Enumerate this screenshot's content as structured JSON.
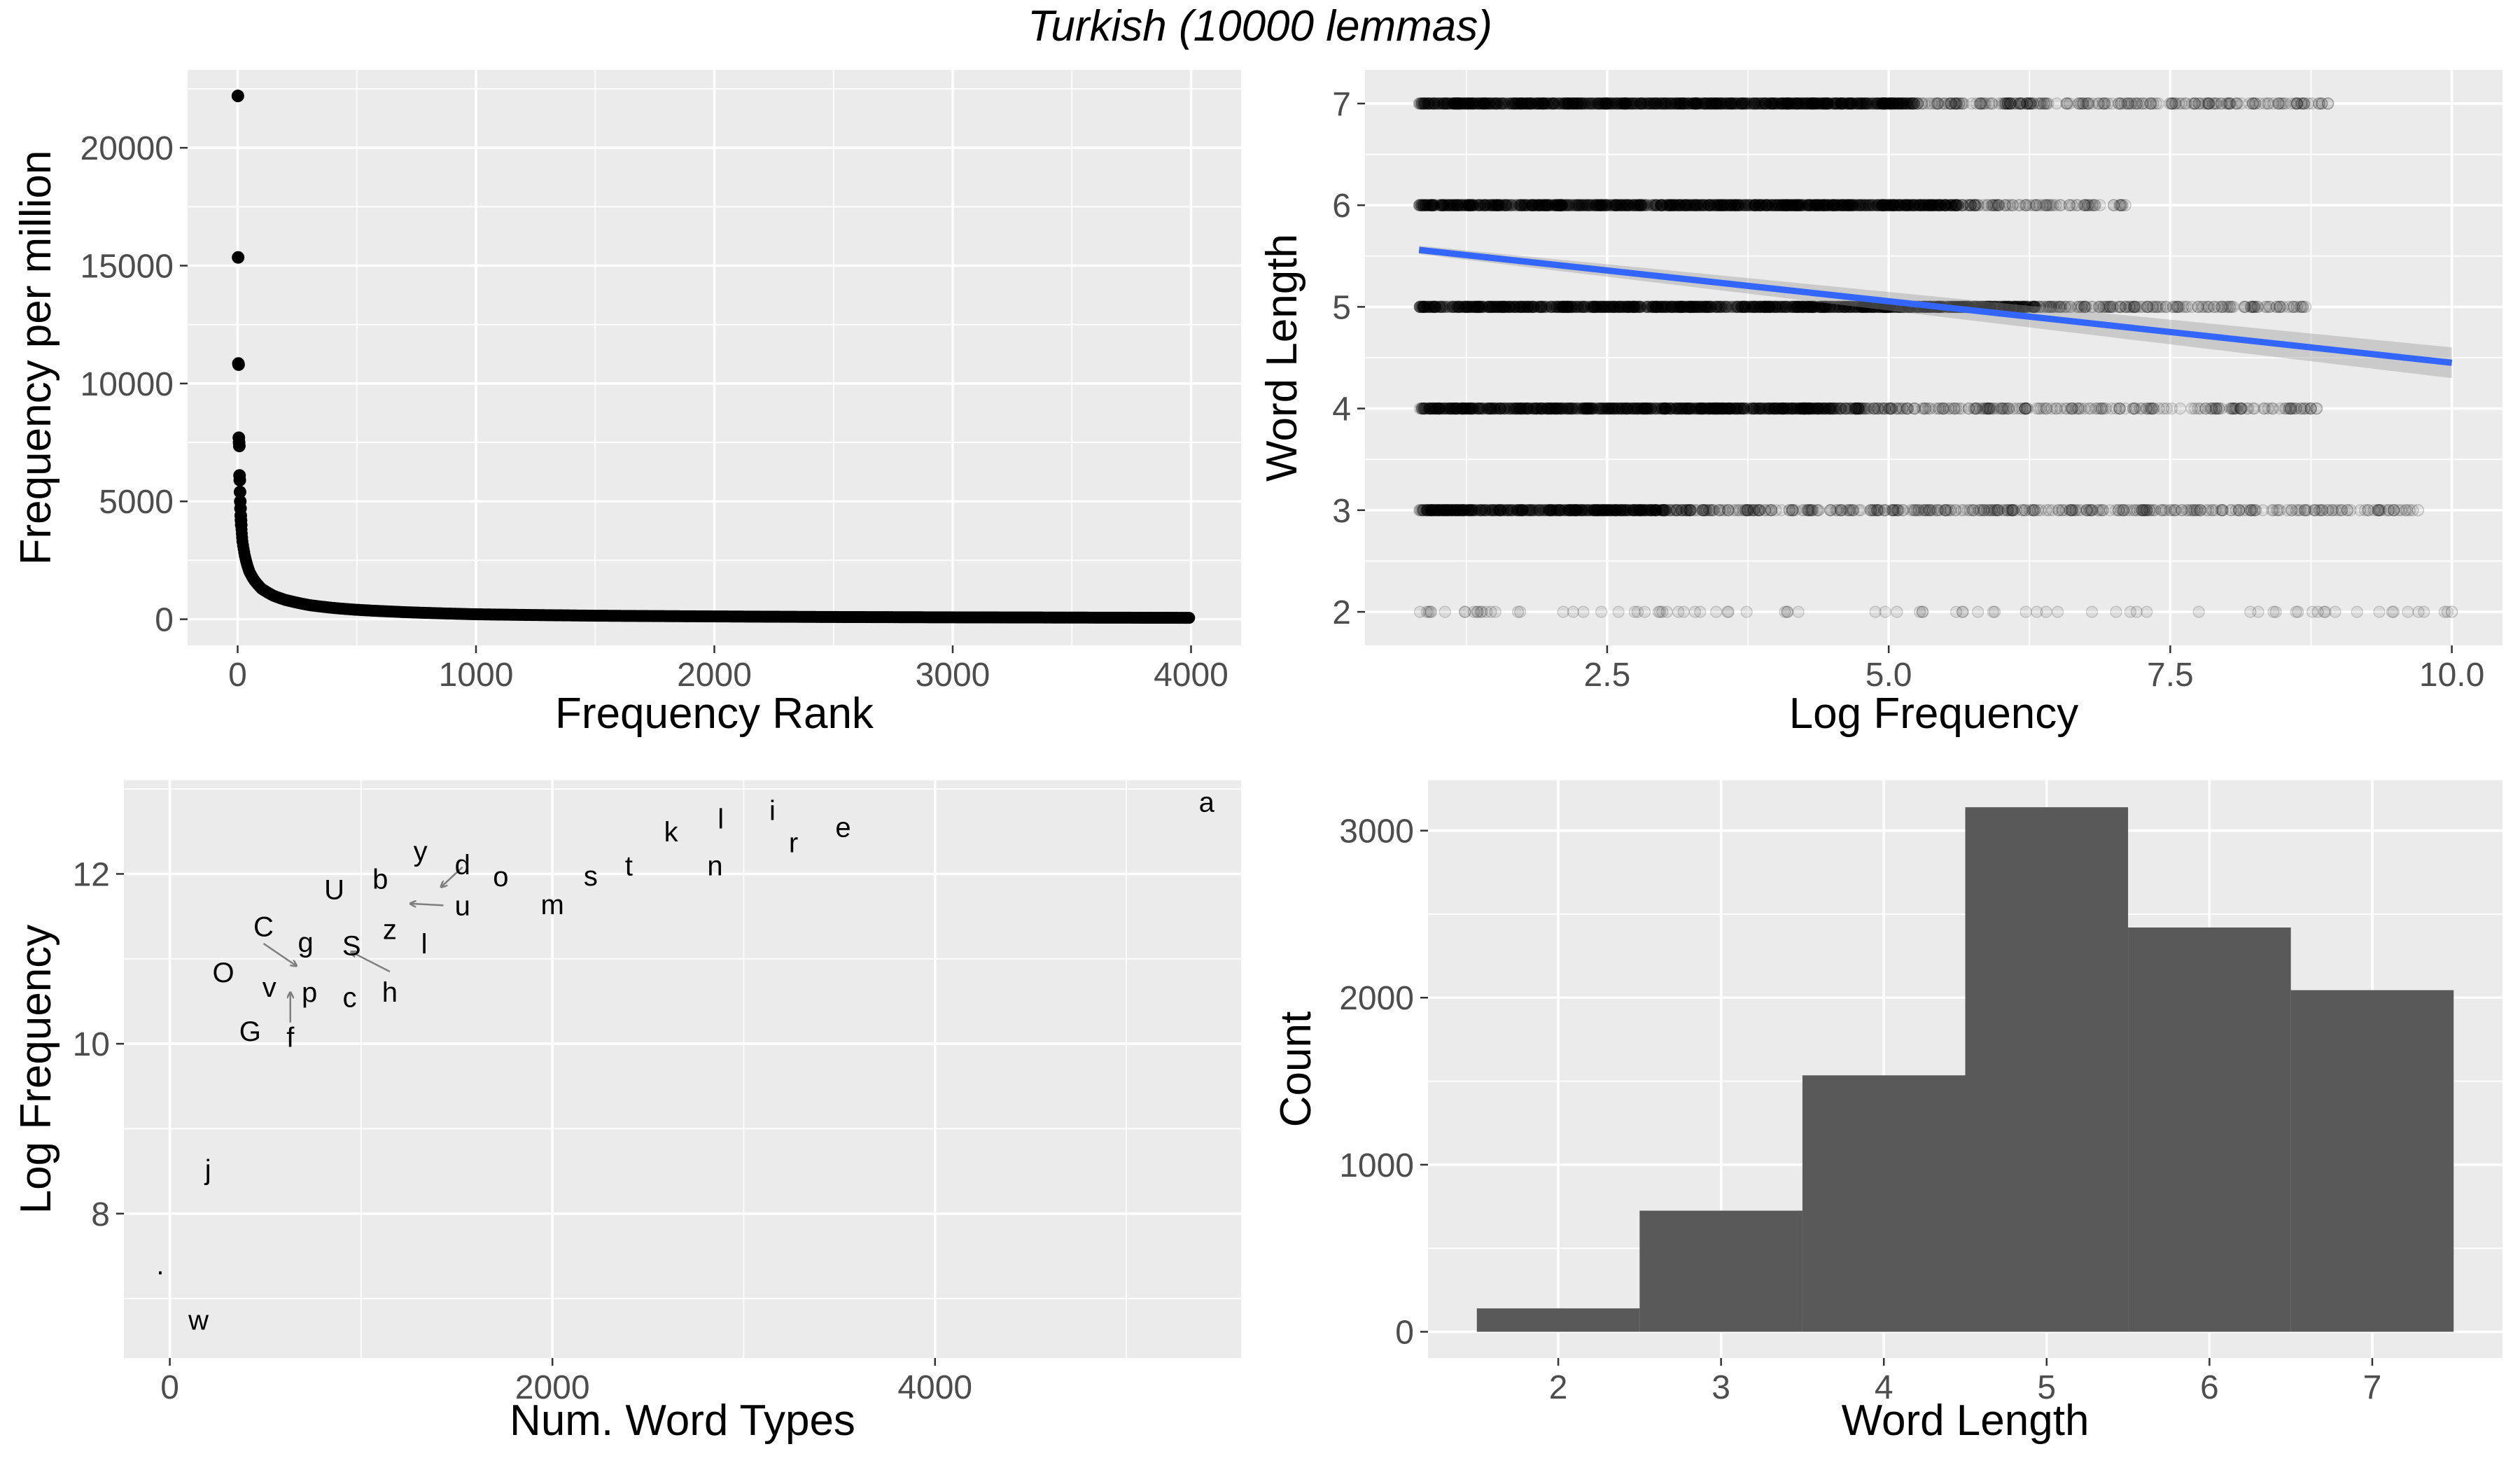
{
  "figure": {
    "title": "Turkish (10000 lemmas)"
  },
  "chart_data": [
    {
      "type": "scatter",
      "xlabel": "Frequency Rank",
      "ylabel": "Frequency per million",
      "xlim": [
        -210,
        4210
      ],
      "ylim": [
        -1110,
        23300
      ],
      "x_ticks": [
        0,
        1000,
        2000,
        3000,
        4000
      ],
      "x_tick_labels": [
        "0",
        "1000",
        "2000",
        "3000",
        "4000"
      ],
      "y_ticks": [
        0,
        5000,
        10000,
        15000,
        20000
      ],
      "y_tick_labels": [
        "0",
        "5000",
        "10000",
        "15000",
        "20000"
      ],
      "grid": true,
      "head_values": [
        22200,
        15350,
        10850,
        10800,
        7700,
        7500,
        7350,
        6100,
        5900,
        5400,
        5000,
        4700,
        4400,
        4200,
        4000
      ],
      "curve": [
        [
          15,
          4000
        ],
        [
          20,
          3300
        ],
        [
          30,
          2700
        ],
        [
          40,
          2300
        ],
        [
          50,
          2000
        ],
        [
          70,
          1650
        ],
        [
          100,
          1300
        ],
        [
          150,
          1000
        ],
        [
          200,
          820
        ],
        [
          300,
          600
        ],
        [
          400,
          480
        ],
        [
          500,
          400
        ],
        [
          700,
          300
        ],
        [
          1000,
          210
        ],
        [
          1500,
          150
        ],
        [
          2000,
          120
        ],
        [
          2500,
          95
        ],
        [
          3000,
          80
        ],
        [
          3500,
          70
        ],
        [
          4000,
          60
        ]
      ]
    },
    {
      "type": "scatter",
      "xlabel": "Log Frequency",
      "ylabel": "Word Length",
      "xlim": [
        0.35,
        10.45
      ],
      "ylim": [
        1.67,
        7.33
      ],
      "x_ticks": [
        2.5,
        5.0,
        7.5,
        10.0
      ],
      "x_tick_labels": [
        "2.5",
        "5.0",
        "7.5",
        "10.0"
      ],
      "y_ticks": [
        2,
        3,
        4,
        5,
        6,
        7
      ],
      "y_tick_labels": [
        "2",
        "3",
        "4",
        "5",
        "6",
        "7"
      ],
      "grid": true,
      "point_ranges": [
        {
          "y": 7,
          "dense_to": 5.2,
          "max": 8.9
        },
        {
          "y": 6,
          "dense_to": 5.6,
          "max": 7.1
        },
        {
          "y": 5,
          "dense_to": 6.3,
          "max": 8.7
        },
        {
          "y": 4,
          "dense_to": 4.5,
          "max": 8.8
        },
        {
          "y": 3,
          "dense_to": 3.0,
          "max": 9.7
        },
        {
          "y": 2,
          "dense_to": 0.0,
          "max": 10.0
        }
      ],
      "regression": {
        "x": [
          0.83,
          10.0
        ],
        "y": [
          5.56,
          4.45
        ],
        "color": "#3366FF"
      }
    },
    {
      "type": "scatter",
      "xlabel": "Num. Word Types",
      "ylabel": "Log Frequency",
      "xlim": [
        -240,
        5600
      ],
      "ylim": [
        6.3,
        13.1
      ],
      "x_ticks": [
        0,
        2000,
        4000
      ],
      "x_tick_labels": [
        "0",
        "2000",
        "4000"
      ],
      "y_ticks": [
        8,
        10,
        12
      ],
      "y_tick_labels": [
        "8",
        "10",
        "12"
      ],
      "grid": true,
      "points": [
        {
          "label": "a",
          "x": 5420,
          "y": 12.85
        },
        {
          "label": "e",
          "x": 3520,
          "y": 12.55
        },
        {
          "label": "i",
          "x": 3150,
          "y": 12.75
        },
        {
          "label": "r",
          "x": 3260,
          "y": 12.37
        },
        {
          "label": "l",
          "x": 2880,
          "y": 12.65
        },
        {
          "label": "n",
          "x": 2850,
          "y": 12.1
        },
        {
          "label": "k",
          "x": 2620,
          "y": 12.5
        },
        {
          "label": "t",
          "x": 2400,
          "y": 12.1
        },
        {
          "label": "s",
          "x": 2200,
          "y": 11.98
        },
        {
          "label": "m",
          "x": 2000,
          "y": 11.64
        },
        {
          "label": "o",
          "x": 1730,
          "y": 11.97
        },
        {
          "label": "d",
          "x": 1530,
          "y": 12.11
        },
        {
          "label": "y",
          "x": 1310,
          "y": 12.27
        },
        {
          "label": "u",
          "x": 1530,
          "y": 11.63
        },
        {
          "label": "b",
          "x": 1100,
          "y": 11.94
        },
        {
          "label": "U",
          "x": 860,
          "y": 11.82
        },
        {
          "label": "z",
          "x": 1150,
          "y": 11.35
        },
        {
          "label": "l",
          "x": 1330,
          "y": 11.18
        },
        {
          "label": "S",
          "x": 950,
          "y": 11.16
        },
        {
          "label": "h",
          "x": 1150,
          "y": 10.61
        },
        {
          "label": "g",
          "x": 710,
          "y": 11.2
        },
        {
          "label": "C",
          "x": 490,
          "y": 11.38
        },
        {
          "label": "O",
          "x": 280,
          "y": 10.84
        },
        {
          "label": "v",
          "x": 520,
          "y": 10.67
        },
        {
          "label": "p",
          "x": 730,
          "y": 10.61
        },
        {
          "label": "c",
          "x": 940,
          "y": 10.55
        },
        {
          "label": "G",
          "x": 420,
          "y": 10.15
        },
        {
          "label": "f",
          "x": 630,
          "y": 10.08
        },
        {
          "label": "j",
          "x": 200,
          "y": 8.52
        },
        {
          "label": "w",
          "x": 150,
          "y": 6.75
        },
        {
          "label": ".",
          "x": -50,
          "y": 7.4
        }
      ],
      "arrows": [
        {
          "from": [
            1530,
            12.08
          ],
          "to": [
            1420,
            11.85
          ]
        },
        {
          "from": [
            1430,
            11.63
          ],
          "to": [
            1260,
            11.65
          ]
        },
        {
          "from": [
            490,
            11.18
          ],
          "to": [
            660,
            10.92
          ]
        },
        {
          "from": [
            1150,
            10.85
          ],
          "to": [
            950,
            11.08
          ]
        },
        {
          "from": [
            630,
            10.25
          ],
          "to": [
            630,
            10.6
          ]
        }
      ]
    },
    {
      "type": "bar",
      "xlabel": "Word Length",
      "ylabel": "Count",
      "categories": [
        "2",
        "3",
        "4",
        "5",
        "6",
        "7"
      ],
      "x": [
        2,
        3,
        4,
        5,
        6,
        7
      ],
      "values": [
        140,
        725,
        1535,
        3140,
        2420,
        2045
      ],
      "xlim": [
        1.2,
        7.8
      ],
      "ylim": [
        -157,
        3300
      ],
      "y_ticks": [
        0,
        1000,
        2000,
        3000
      ],
      "y_tick_labels": [
        "0",
        "1000",
        "2000",
        "3000"
      ],
      "x_tick_labels": [
        "2",
        "3",
        "4",
        "5",
        "6",
        "7"
      ],
      "grid": true,
      "bar_color": "#595959"
    }
  ]
}
